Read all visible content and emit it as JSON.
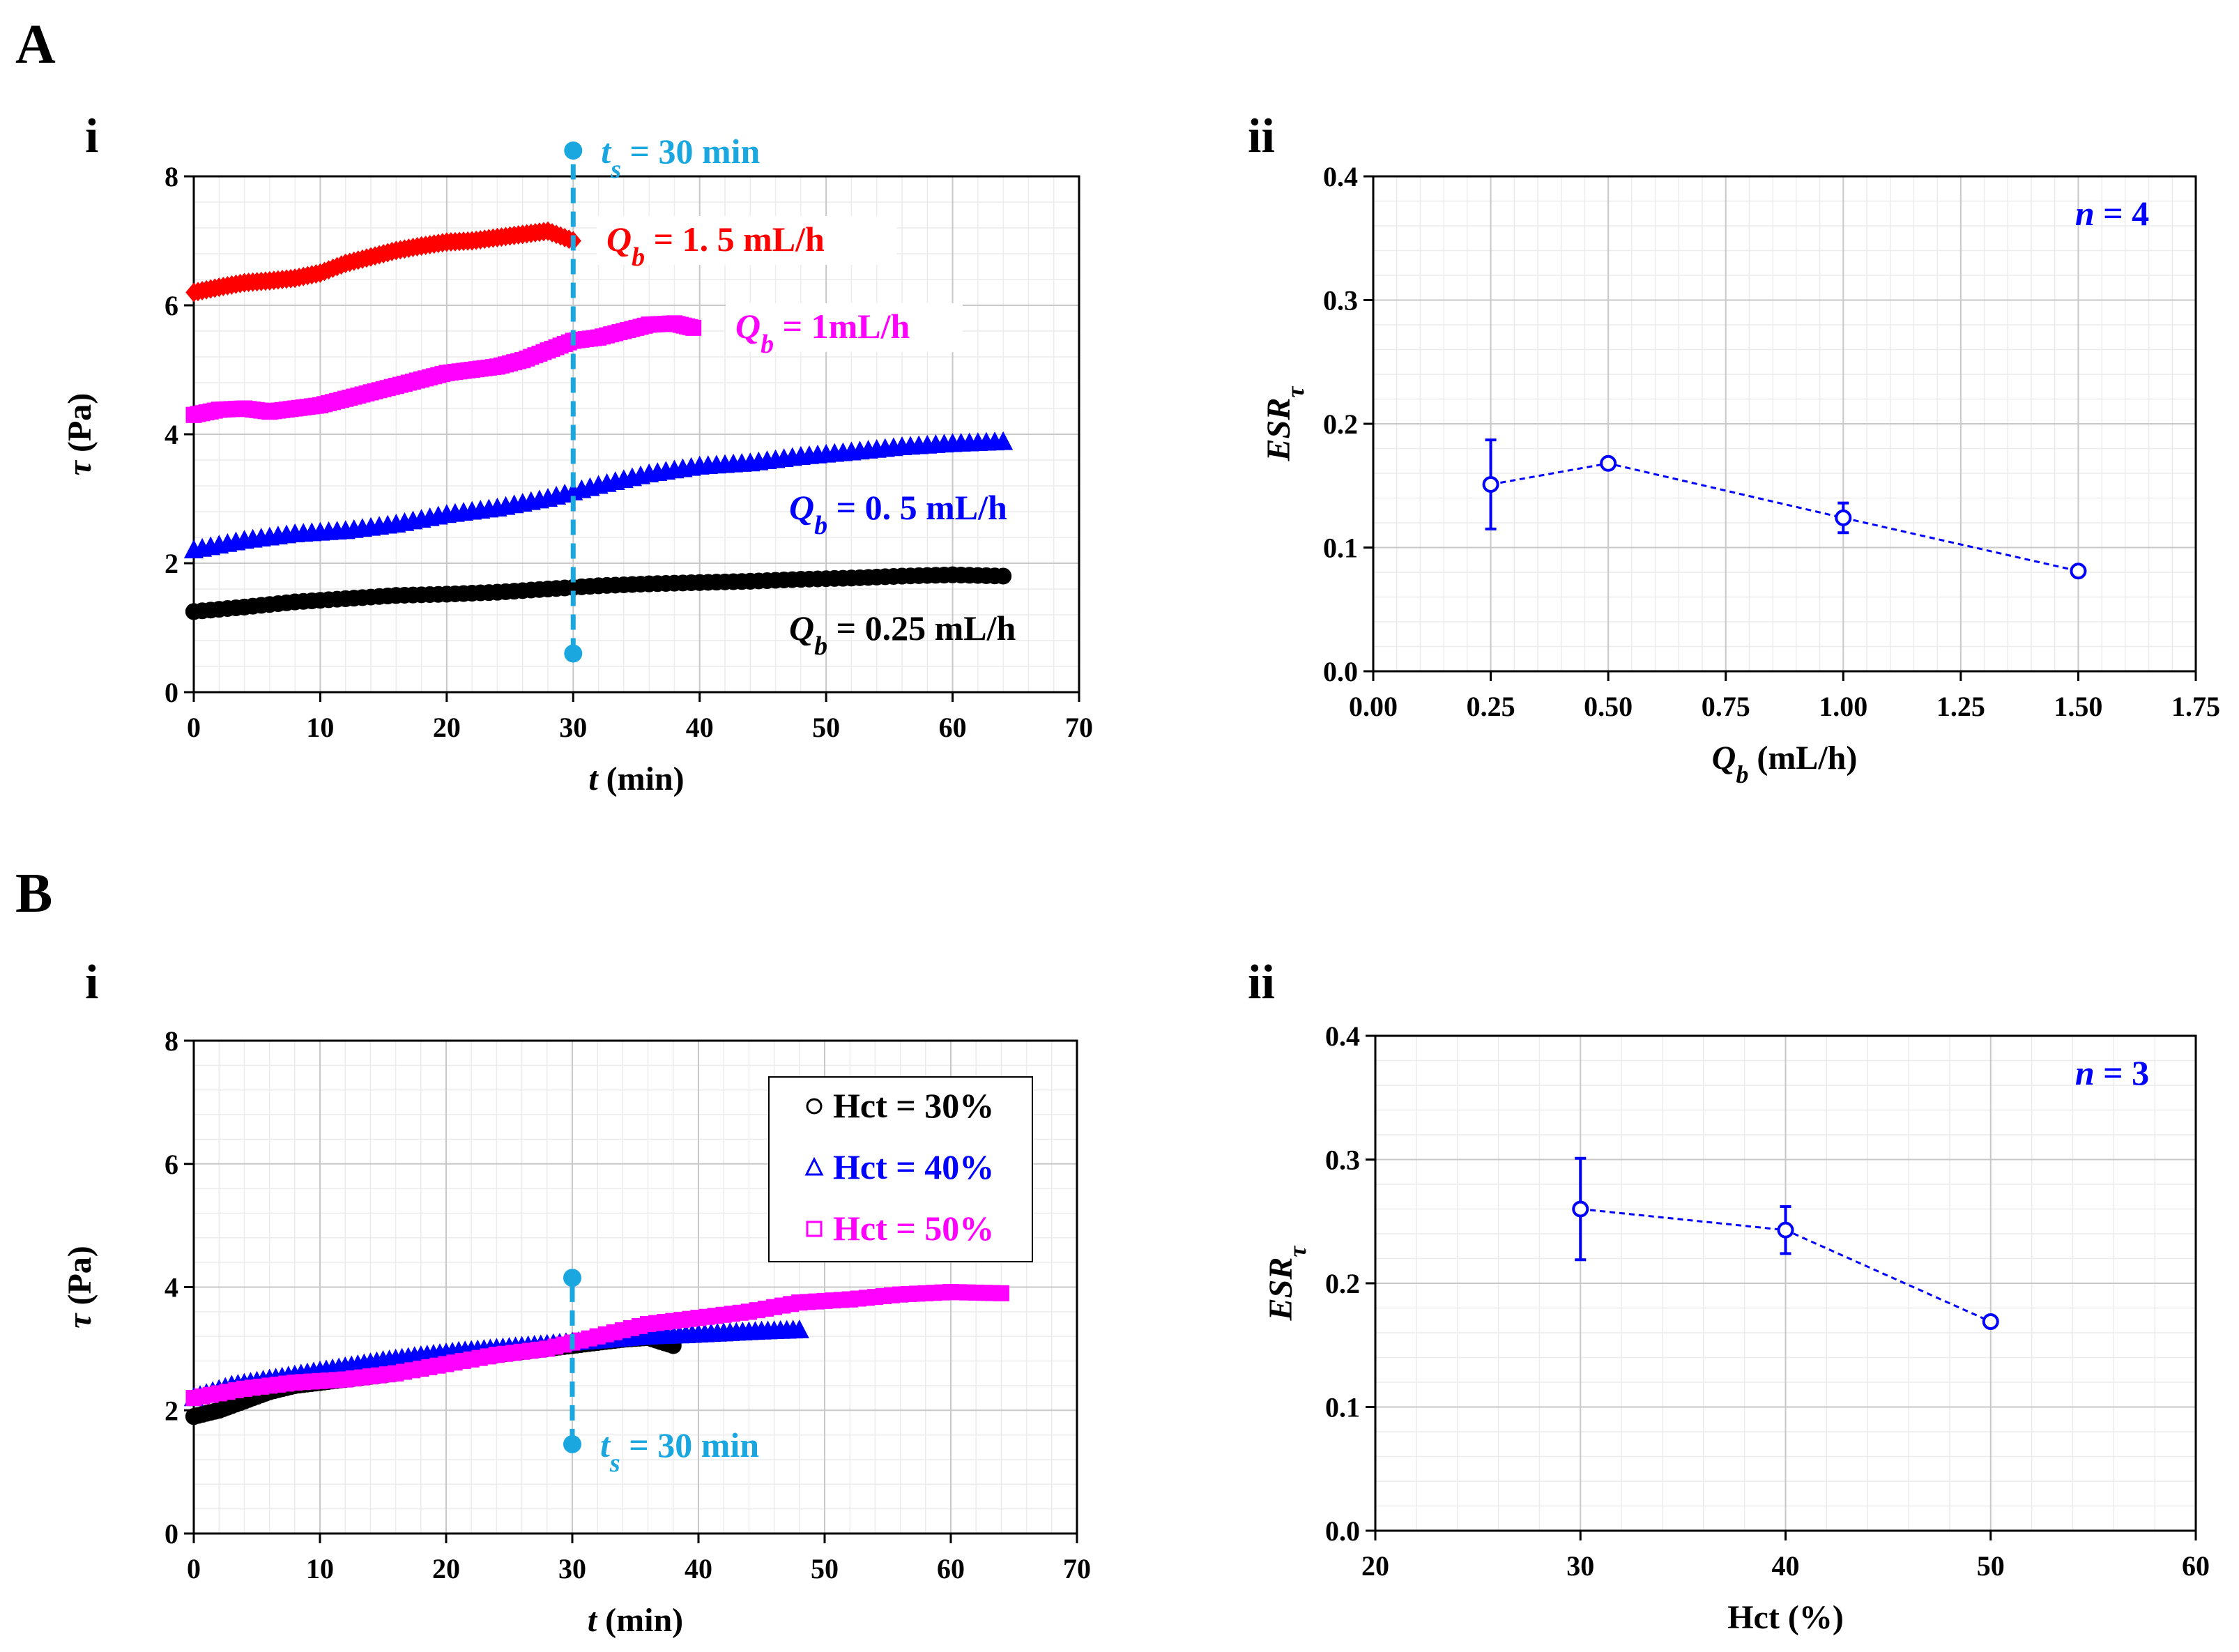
{
  "panels": {
    "A": {
      "letter": "A",
      "i": "i",
      "ii": "ii"
    },
    "B": {
      "letter": "B",
      "i": "i",
      "ii": "ii"
    }
  },
  "colors": {
    "red": "#ff0000",
    "magenta": "#ff00ff",
    "blue": "#0000ff",
    "black": "#000000",
    "cyan": "#1aa7e0",
    "grid": "#c8c8c8",
    "minorgrid": "#ececec"
  },
  "chart_data": [
    {
      "id": "Ai",
      "type": "scatter",
      "xlabel": "t (min)",
      "xlabel_var": "t",
      "xlabel_unit": " (min)",
      "ylabel": "τ (Pa)",
      "ylabel_var": "τ",
      "ylabel_unit": " (Pa)",
      "xlim": [
        0,
        70
      ],
      "ylim": [
        0,
        8
      ],
      "xticks": [
        "0",
        "10",
        "20",
        "30",
        "40",
        "50",
        "60",
        "70"
      ],
      "yticks": [
        "0",
        "2",
        "4",
        "6",
        "8"
      ],
      "vline": {
        "x": 30,
        "y1": 0.6,
        "y2": 8.4,
        "label_var": "t",
        "label_sub": "s",
        "label_rest": " = 30 min"
      },
      "series": [
        {
          "name": "Qb = 1.5 mL/h",
          "label_var": "Q",
          "label_sub": "b",
          "label_rest": " = 1. 5 mL/h",
          "color": "#ff0000",
          "marker": "diamond",
          "x": [
            0,
            2,
            4,
            6,
            8,
            10,
            12,
            14,
            16,
            18,
            20,
            22,
            24,
            26,
            28,
            30
          ],
          "y": [
            6.2,
            6.28,
            6.35,
            6.38,
            6.42,
            6.5,
            6.65,
            6.75,
            6.85,
            6.92,
            6.98,
            7.0,
            7.05,
            7.1,
            7.15,
            7.0
          ]
        },
        {
          "name": "Qb = 1mL/h",
          "label_var": "Q",
          "label_sub": "b",
          "label_rest": " = 1mL/h",
          "color": "#ff00ff",
          "marker": "square",
          "x": [
            0,
            2,
            4,
            6,
            8,
            10,
            12,
            14,
            16,
            18,
            20,
            22,
            24,
            26,
            28,
            30,
            32,
            34,
            36,
            38,
            39.5
          ],
          "y": [
            4.3,
            4.38,
            4.4,
            4.35,
            4.4,
            4.45,
            4.55,
            4.65,
            4.75,
            4.85,
            4.95,
            5.0,
            5.05,
            5.15,
            5.3,
            5.45,
            5.5,
            5.6,
            5.7,
            5.72,
            5.65
          ]
        },
        {
          "name": "Qb = 0.5 mL/h",
          "label_var": "Q",
          "label_sub": "b",
          "label_rest": " = 0. 5 mL/h",
          "color": "#0000ff",
          "marker": "triangle",
          "x": [
            0,
            4,
            8,
            12,
            16,
            20,
            24,
            28,
            32,
            36,
            40,
            44,
            48,
            52,
            56,
            60,
            64
          ],
          "y": [
            2.2,
            2.35,
            2.45,
            2.5,
            2.6,
            2.75,
            2.85,
            3.0,
            3.2,
            3.38,
            3.5,
            3.55,
            3.65,
            3.72,
            3.8,
            3.85,
            3.88
          ]
        },
        {
          "name": "Qb = 0.25 mL/h",
          "label_var": "Q",
          "label_sub": "b",
          "label_rest": " = 0.25 mL/h",
          "color": "#000000",
          "marker": "circle",
          "x": [
            0,
            4,
            8,
            12,
            16,
            20,
            24,
            28,
            32,
            36,
            40,
            44,
            48,
            52,
            56,
            60,
            64
          ],
          "y": [
            1.25,
            1.32,
            1.4,
            1.45,
            1.5,
            1.52,
            1.55,
            1.6,
            1.65,
            1.68,
            1.7,
            1.72,
            1.75,
            1.77,
            1.8,
            1.82,
            1.8
          ]
        }
      ]
    },
    {
      "id": "Aii",
      "type": "line",
      "xlabel": "Qb (mL/h)",
      "xlabel_var": "Q",
      "xlabel_sub": "b",
      "xlabel_unit": " (mL/h)",
      "ylabel": "ESRτ",
      "ylabel_var": "ESR",
      "ylabel_sub": "τ",
      "xlim": [
        0,
        1.75
      ],
      "ylim": [
        0,
        0.4
      ],
      "xticks": [
        "0.00",
        "0.25",
        "0.50",
        "0.75",
        "1.00",
        "1.25",
        "1.50",
        "1.75"
      ],
      "yticks": [
        "0.0",
        "0.1",
        "0.2",
        "0.3",
        "0.4"
      ],
      "annotation": {
        "var": "n",
        "rest": " = 4"
      },
      "series": [
        {
          "name": "ESR",
          "color": "#0000ff",
          "x": [
            0.25,
            0.5,
            1.0,
            1.5
          ],
          "y": [
            0.151,
            0.168,
            0.124,
            0.081
          ],
          "err": [
            0.036,
            0.003,
            0.012,
            0.003
          ]
        }
      ]
    },
    {
      "id": "Bi",
      "type": "scatter",
      "xlabel": "t (min)",
      "xlabel_var": "t",
      "xlabel_unit": " (min)",
      "ylabel": "τ (Pa)",
      "ylabel_var": "τ",
      "ylabel_unit": " (Pa)",
      "xlim": [
        0,
        70
      ],
      "ylim": [
        0,
        8
      ],
      "xticks": [
        "0",
        "10",
        "20",
        "30",
        "40",
        "50",
        "60",
        "70"
      ],
      "yticks": [
        "0",
        "2",
        "4",
        "6",
        "8"
      ],
      "vline": {
        "x": 30,
        "y1": 1.45,
        "y2": 4.15,
        "label_var": "t",
        "label_sub": "s",
        "label_rest": " = 30 min"
      },
      "legend": {
        "placement": "top-right",
        "entries": [
          "Hct = 30%",
          "Hct = 40%",
          "Hct = 50%"
        ]
      },
      "series": [
        {
          "name": "Hct = 30%",
          "color": "#000000",
          "marker": "circle",
          "x": [
            0,
            2,
            4,
            6,
            8,
            10,
            12,
            14,
            16,
            18,
            20,
            22,
            24,
            26,
            28,
            30,
            32,
            34,
            36,
            38
          ],
          "y": [
            1.9,
            2.0,
            2.15,
            2.3,
            2.4,
            2.45,
            2.5,
            2.55,
            2.6,
            2.7,
            2.8,
            2.85,
            2.9,
            2.95,
            3.0,
            3.05,
            3.1,
            3.15,
            3.18,
            3.05
          ]
        },
        {
          "name": "Hct = 40%",
          "color": "#0000ff",
          "marker": "triangle",
          "x": [
            0,
            3,
            6,
            9,
            12,
            15,
            18,
            21,
            24,
            27,
            30,
            33,
            36,
            39,
            42,
            45,
            48
          ],
          "y": [
            2.2,
            2.4,
            2.5,
            2.6,
            2.7,
            2.8,
            2.88,
            2.95,
            3.0,
            3.05,
            3.1,
            3.15,
            3.2,
            3.22,
            3.25,
            3.28,
            3.3
          ]
        },
        {
          "name": "Hct = 50%",
          "color": "#ff00ff",
          "marker": "square",
          "x": [
            0,
            4,
            8,
            12,
            16,
            20,
            24,
            28,
            32,
            36,
            40,
            44,
            48,
            52,
            56,
            60,
            64
          ],
          "y": [
            2.2,
            2.35,
            2.45,
            2.5,
            2.6,
            2.75,
            2.9,
            3.0,
            3.2,
            3.4,
            3.5,
            3.6,
            3.75,
            3.8,
            3.88,
            3.92,
            3.9
          ]
        }
      ]
    },
    {
      "id": "Bii",
      "type": "line",
      "xlabel": "Hct (%)",
      "ylabel": "ESRτ",
      "ylabel_var": "ESR",
      "ylabel_sub": "τ",
      "xlim": [
        20,
        60
      ],
      "ylim": [
        0,
        0.4
      ],
      "xticks": [
        "20",
        "30",
        "40",
        "50",
        "60"
      ],
      "yticks": [
        "0.0",
        "0.1",
        "0.2",
        "0.3",
        "0.4"
      ],
      "annotation": {
        "var": "n",
        "rest": " = 3"
      },
      "series": [
        {
          "name": "ESR",
          "color": "#0000ff",
          "x": [
            30,
            40,
            50
          ],
          "y": [
            0.26,
            0.243,
            0.169
          ],
          "err": [
            0.041,
            0.019,
            0.003
          ]
        }
      ]
    }
  ]
}
